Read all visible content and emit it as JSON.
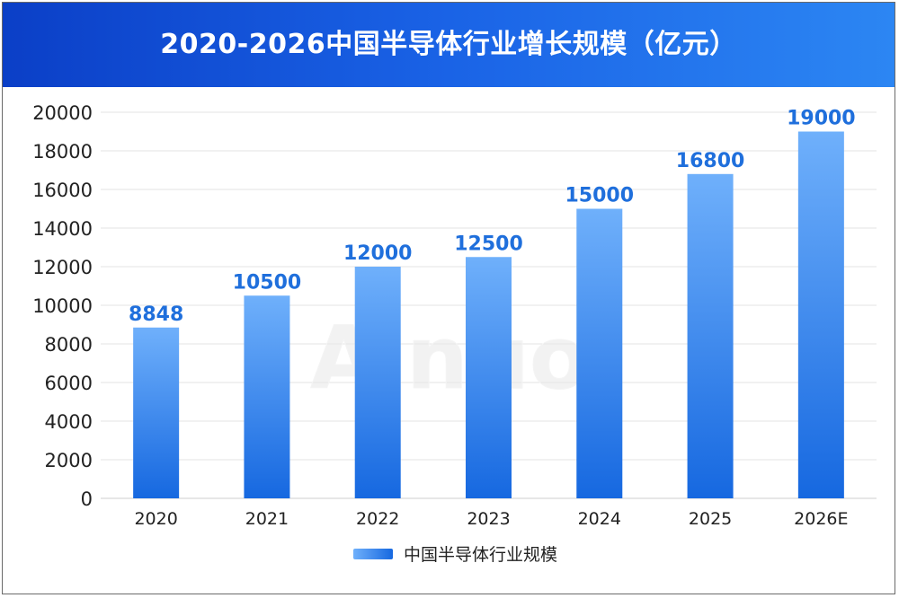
{
  "chart_data": {
    "type": "bar",
    "title": "2020-2026中国半导体行业增长规模（亿元）",
    "categories": [
      "2020",
      "2021",
      "2022",
      "2023",
      "2024",
      "2025",
      "2026E"
    ],
    "series": [
      {
        "name": "中国半导体行业规模",
        "values": [
          8848,
          10500,
          12000,
          12500,
          15000,
          16800,
          19000
        ]
      }
    ],
    "data_labels": [
      "8848",
      "10500",
      "12000",
      "12500",
      "15000",
      "16800",
      "19000"
    ],
    "yticks": [
      "0",
      "2000",
      "4000",
      "6000",
      "8000",
      "10000",
      "12000",
      "14000",
      "16000",
      "18000",
      "20000"
    ],
    "ylim": [
      0,
      20000
    ],
    "grid": true,
    "legend_position": "bottom-center",
    "colors": {
      "header_start": "#0b3fc7",
      "header_end": "#2c86f3",
      "bar_top": "#6fb0fb",
      "bar_bottom": "#1668e0",
      "data_label": "#1f6fdc",
      "grid": "#e3e3e3"
    }
  },
  "watermark": "Ainuo"
}
